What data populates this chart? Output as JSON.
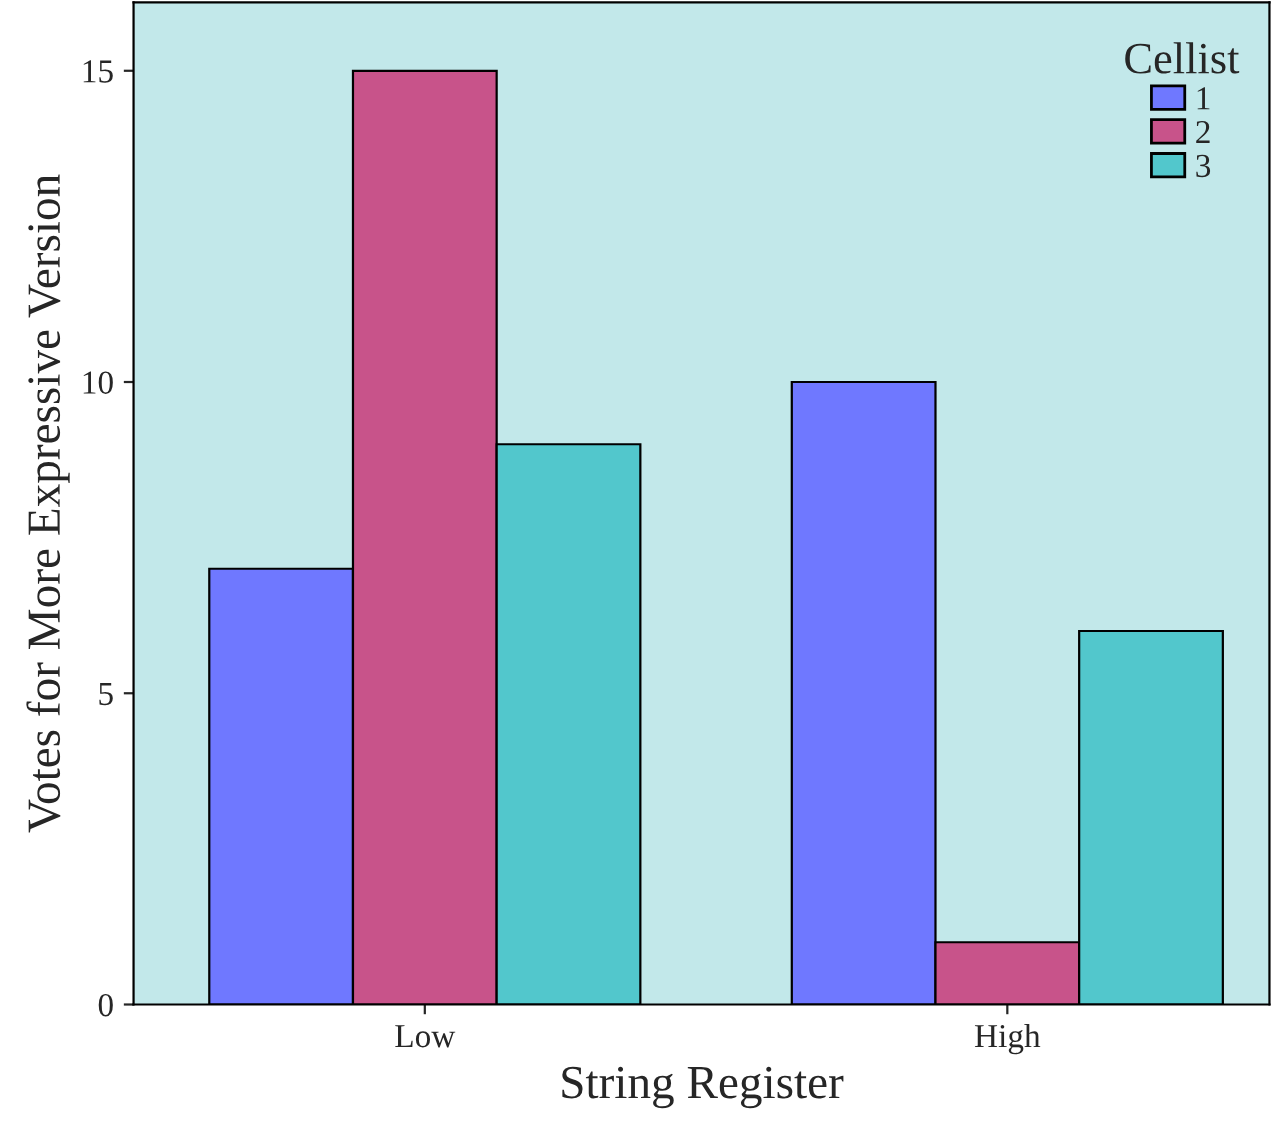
{
  "chart_data": {
    "type": "bar",
    "xlabel": "String Register",
    "ylabel": "Votes for More Expressive Version",
    "legend_title": "Cellist",
    "categories": [
      "Low",
      "High"
    ],
    "series": [
      {
        "name": "1",
        "color": "#6f78ff",
        "values": [
          7,
          10
        ]
      },
      {
        "name": "2",
        "color": "#c8538a",
        "values": [
          15,
          1
        ]
      },
      {
        "name": "3",
        "color": "#52c7cc",
        "values": [
          9,
          6
        ]
      }
    ],
    "ylim": [
      0,
      16.1
    ],
    "yticks": [
      0,
      5,
      10,
      15
    ],
    "grid": false,
    "legend": "top right"
  }
}
